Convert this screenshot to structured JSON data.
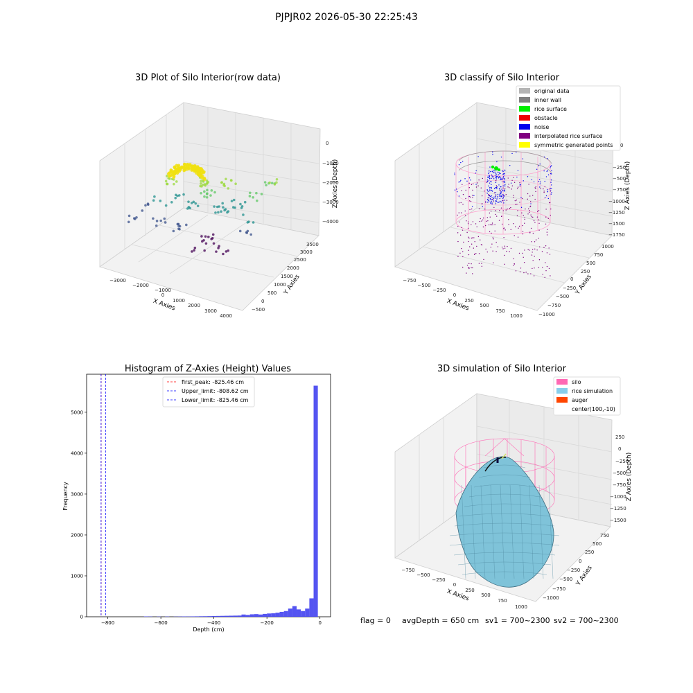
{
  "figure": {
    "suptitle": "PJPJR02 2026-05-30 22:25:43",
    "footer": {
      "flag": "flag = 0",
      "avg_depth": "avgDepth = 650 cm",
      "sv1": "sv1 = 700~2300",
      "sv2": "sv2 = 700~2300"
    }
  },
  "chart_data": [
    {
      "type": "scatter",
      "title": "3D Plot of Silo Interior(row data)",
      "xlabel": "X Axies",
      "ylabel": "Y Axies",
      "zlabel": "Z Axies (Depth)",
      "x_ticks": [
        "−3000",
        "−2000",
        "−1000",
        "0",
        "1000",
        "2000",
        "3000",
        "4000"
      ],
      "y_ticks": [
        "−500",
        "0",
        "500",
        "1000",
        "1500",
        "2000",
        "2500",
        "3000",
        "3500"
      ],
      "z_ticks": [
        "−4000",
        "−3000",
        "−2000",
        "−1000",
        "0"
      ],
      "colormap": "viridis",
      "point_color_dense": "#f0e010"
    },
    {
      "type": "scatter",
      "title": "3D classify of Silo Interior",
      "xlabel": "X Axies",
      "ylabel": "Y Axies",
      "zlabel": "Z Axies (Depth)",
      "x_ticks": [
        "−750",
        "−500",
        "−250",
        "0",
        "250",
        "500",
        "750",
        "1000"
      ],
      "y_ticks": [
        "−1000",
        "−750",
        "−500",
        "−250",
        "0",
        "250",
        "500",
        "750",
        "1000"
      ],
      "z_ticks": [
        "−1750",
        "−1500",
        "−1250",
        "−1000",
        "−750",
        "−500",
        "−250",
        "0"
      ],
      "legend_position": "top-right",
      "legend": [
        {
          "label": "original data",
          "color": "#b4b4b4"
        },
        {
          "label": "inner wall",
          "color": "#808080"
        },
        {
          "label": "rice surface",
          "color": "#00ee00"
        },
        {
          "label": "obstacle",
          "color": "#ee0000"
        },
        {
          "label": "noise",
          "color": "#0000ee"
        },
        {
          "label": "interpolated rice surface",
          "color": "#800080"
        },
        {
          "label": "symmetric generated points",
          "color": "#ffff00"
        }
      ]
    },
    {
      "type": "bar",
      "title": "Histogram of Z-Axies (Height) Values",
      "xlabel": "Depth (cm)",
      "ylabel": "Frequency",
      "xlim": [
        -880,
        40
      ],
      "ylim": [
        0,
        5930
      ],
      "x_ticks": [
        -800,
        -600,
        -400,
        -200,
        0
      ],
      "y_ticks": [
        0,
        1000,
        2000,
        3000,
        4000,
        5000
      ],
      "bar_color": "#4b4bf0",
      "bin_width": 16,
      "bins": [
        {
          "x": -664,
          "count": 8
        },
        {
          "x": -648,
          "count": 6
        },
        {
          "x": -616,
          "count": 5
        },
        {
          "x": -584,
          "count": 6
        },
        {
          "x": -552,
          "count": 4
        },
        {
          "x": -536,
          "count": 6
        },
        {
          "x": -520,
          "count": 8
        },
        {
          "x": -504,
          "count": 7
        },
        {
          "x": -488,
          "count": 9
        },
        {
          "x": -472,
          "count": 10
        },
        {
          "x": -456,
          "count": 12
        },
        {
          "x": -440,
          "count": 13
        },
        {
          "x": -424,
          "count": 15
        },
        {
          "x": -408,
          "count": 17
        },
        {
          "x": -392,
          "count": 20
        },
        {
          "x": -376,
          "count": 22
        },
        {
          "x": -360,
          "count": 24
        },
        {
          "x": -344,
          "count": 26
        },
        {
          "x": -328,
          "count": 28
        },
        {
          "x": -312,
          "count": 30
        },
        {
          "x": -296,
          "count": 55
        },
        {
          "x": -280,
          "count": 45
        },
        {
          "x": -264,
          "count": 60
        },
        {
          "x": -248,
          "count": 65
        },
        {
          "x": -232,
          "count": 55
        },
        {
          "x": -216,
          "count": 70
        },
        {
          "x": -200,
          "count": 80
        },
        {
          "x": -184,
          "count": 85
        },
        {
          "x": -168,
          "count": 100
        },
        {
          "x": -152,
          "count": 120
        },
        {
          "x": -136,
          "count": 140
        },
        {
          "x": -120,
          "count": 200
        },
        {
          "x": -104,
          "count": 260
        },
        {
          "x": -88,
          "count": 180
        },
        {
          "x": -72,
          "count": 140
        },
        {
          "x": -56,
          "count": 200
        },
        {
          "x": -40,
          "count": 450
        },
        {
          "x": -24,
          "count": 5650
        }
      ],
      "vlines": [
        {
          "x": -825.46,
          "color": "#ff0000",
          "label": "first_peak: -825.46 cm"
        },
        {
          "x": -808.62,
          "color": "#0000ff",
          "label": "Upper_limit: -808.62 cm"
        },
        {
          "x": -825.46,
          "color": "#0000ff",
          "label": "Lower_limit: -825.46 cm"
        }
      ],
      "legend_position": "upper-center"
    },
    {
      "type": "surface",
      "title": "3D simulation of Silo Interior",
      "xlabel": "X Axies",
      "ylabel": "Y Axies",
      "zlabel": "Z Axies (Depth)",
      "x_ticks": [
        "−750",
        "−500",
        "−250",
        "0",
        "250",
        "500",
        "750",
        "1000"
      ],
      "y_ticks": [
        "−1000",
        "−750",
        "−500",
        "−250",
        "0",
        "250",
        "500",
        "750"
      ],
      "z_ticks": [
        "−1500",
        "−1250",
        "−1000",
        "−750",
        "−500",
        "−250",
        "0",
        "250"
      ],
      "legend_position": "top-right",
      "legend": [
        {
          "label": "silo",
          "color": "#ff69b4"
        },
        {
          "label": "rice simulation",
          "color": "#87ceeb"
        },
        {
          "label": "auger",
          "color": "#ff4500"
        },
        {
          "label": "center(100,-10)",
          "color": ""
        }
      ]
    }
  ]
}
